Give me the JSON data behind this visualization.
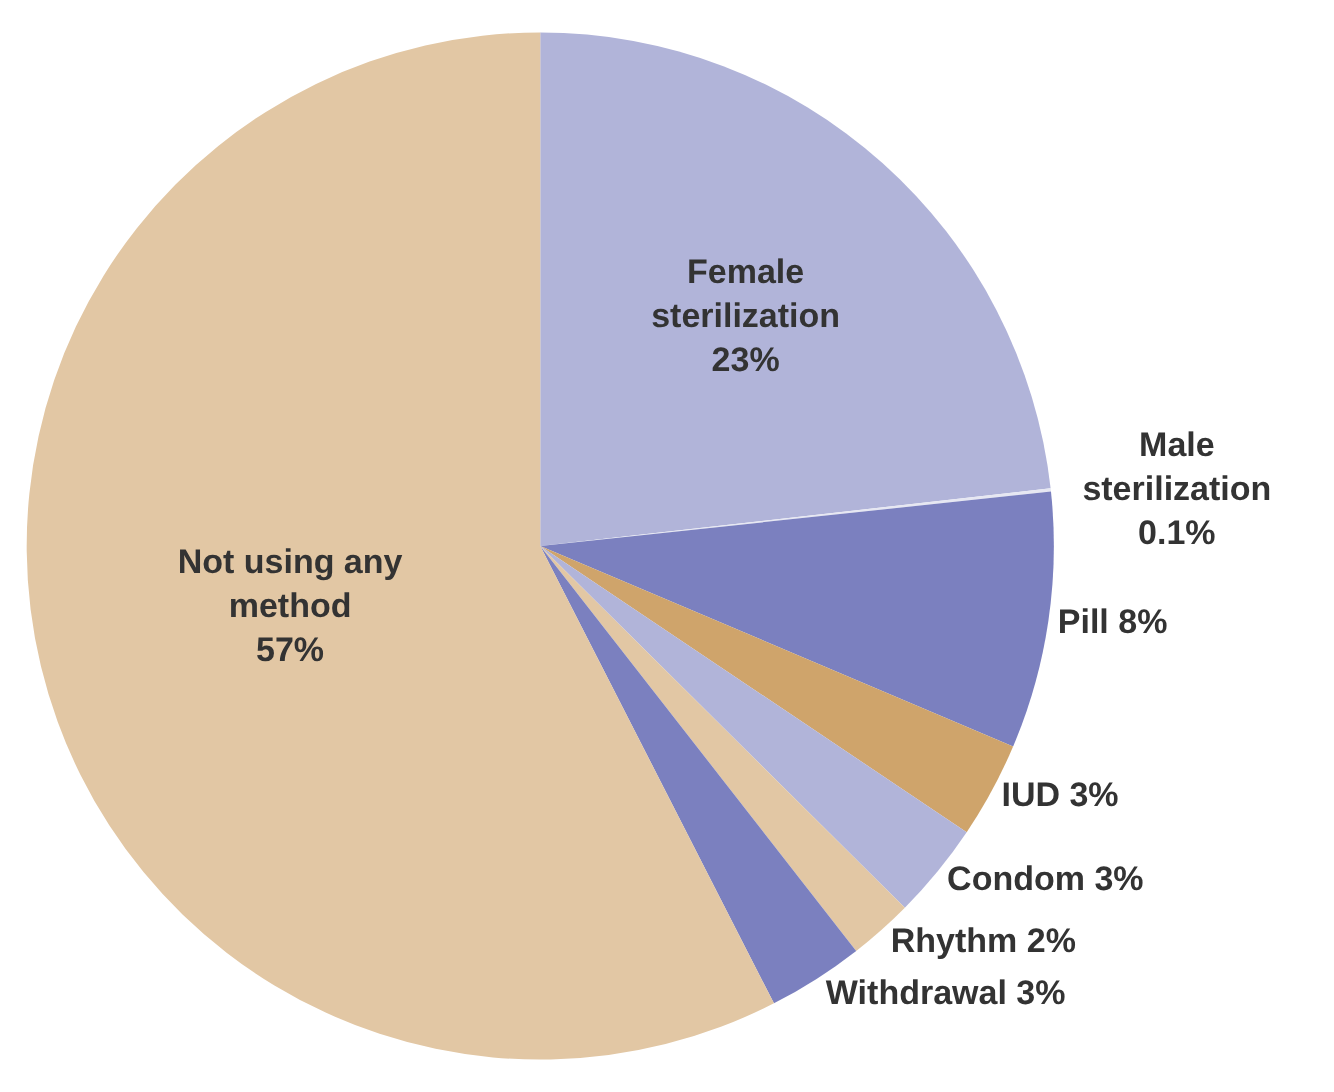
{
  "chart_data": {
    "type": "pie",
    "categories": [
      "Female sterilization",
      "Male sterilization",
      "Pill",
      "IUD",
      "Condom",
      "Rhythm",
      "Withdrawal",
      "Not using any method"
    ],
    "values": [
      23,
      0.1,
      8,
      3,
      3,
      2,
      3,
      57
    ],
    "value_labels": [
      "23%",
      "0.1%",
      "8%",
      "3%",
      "3%",
      "2%",
      "3%",
      "57%"
    ],
    "colors": [
      "#b1b4d9",
      "#e6e7f2",
      "#7b80bf",
      "#cfa46b",
      "#b1b4d9",
      "#e2c7a4",
      "#7b80bf",
      "#e2c7a4"
    ],
    "legend": false
  }
}
